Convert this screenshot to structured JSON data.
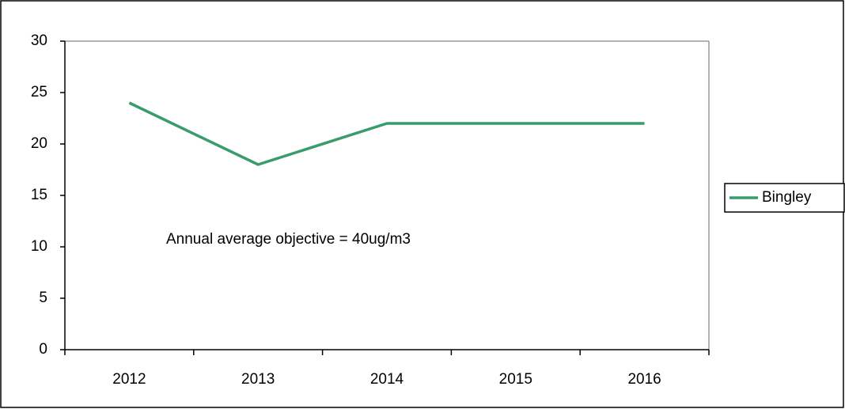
{
  "chart_data": {
    "type": "line",
    "categories": [
      "2012",
      "2013",
      "2014",
      "2015",
      "2016"
    ],
    "series": [
      {
        "name": "Bingley",
        "color": "#3a9b6b",
        "values": [
          24,
          18,
          22,
          22,
          22
        ]
      }
    ],
    "ylim": [
      0,
      30
    ],
    "yticks": [
      0,
      5,
      10,
      15,
      20,
      25,
      30
    ],
    "grid": false,
    "legend": "right",
    "annotation": "Annual average objective = 40ug/m3"
  }
}
